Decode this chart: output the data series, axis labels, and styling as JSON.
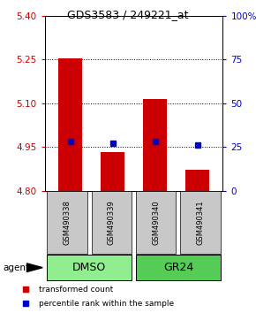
{
  "title": "GDS3583 / 249221_at",
  "samples": [
    "GSM490338",
    "GSM490339",
    "GSM490340",
    "GSM490341"
  ],
  "bar_values": [
    5.253,
    4.932,
    5.115,
    4.872
  ],
  "bar_base": 4.8,
  "percentile_values": [
    28.0,
    27.0,
    28.0,
    26.0
  ],
  "left_ylim": [
    4.8,
    5.4
  ],
  "right_ylim": [
    0,
    100
  ],
  "left_yticks": [
    4.8,
    4.95,
    5.1,
    5.25,
    5.4
  ],
  "right_yticks": [
    0,
    25,
    50,
    75,
    100
  ],
  "hlines": [
    4.95,
    5.1,
    5.25
  ],
  "bar_color": "#cc0000",
  "dot_color": "#0000cc",
  "sample_box_color": "#c8c8c8",
  "groups": [
    {
      "label": "DMSO",
      "indices": [
        0,
        1
      ],
      "color": "#90ee90"
    },
    {
      "label": "GR24",
      "indices": [
        2,
        3
      ],
      "color": "#55cc55"
    }
  ],
  "legend_items": [
    {
      "color": "#cc0000",
      "label": "transformed count"
    },
    {
      "color": "#0000cc",
      "label": "percentile rank within the sample"
    }
  ],
  "agent_label": "agent",
  "left_tick_color": "#cc0000",
  "right_tick_color": "#0000cc",
  "title_fontsize": 9,
  "tick_fontsize": 7.5,
  "sample_fontsize": 6,
  "group_fontsize": 9,
  "legend_fontsize": 6.5
}
